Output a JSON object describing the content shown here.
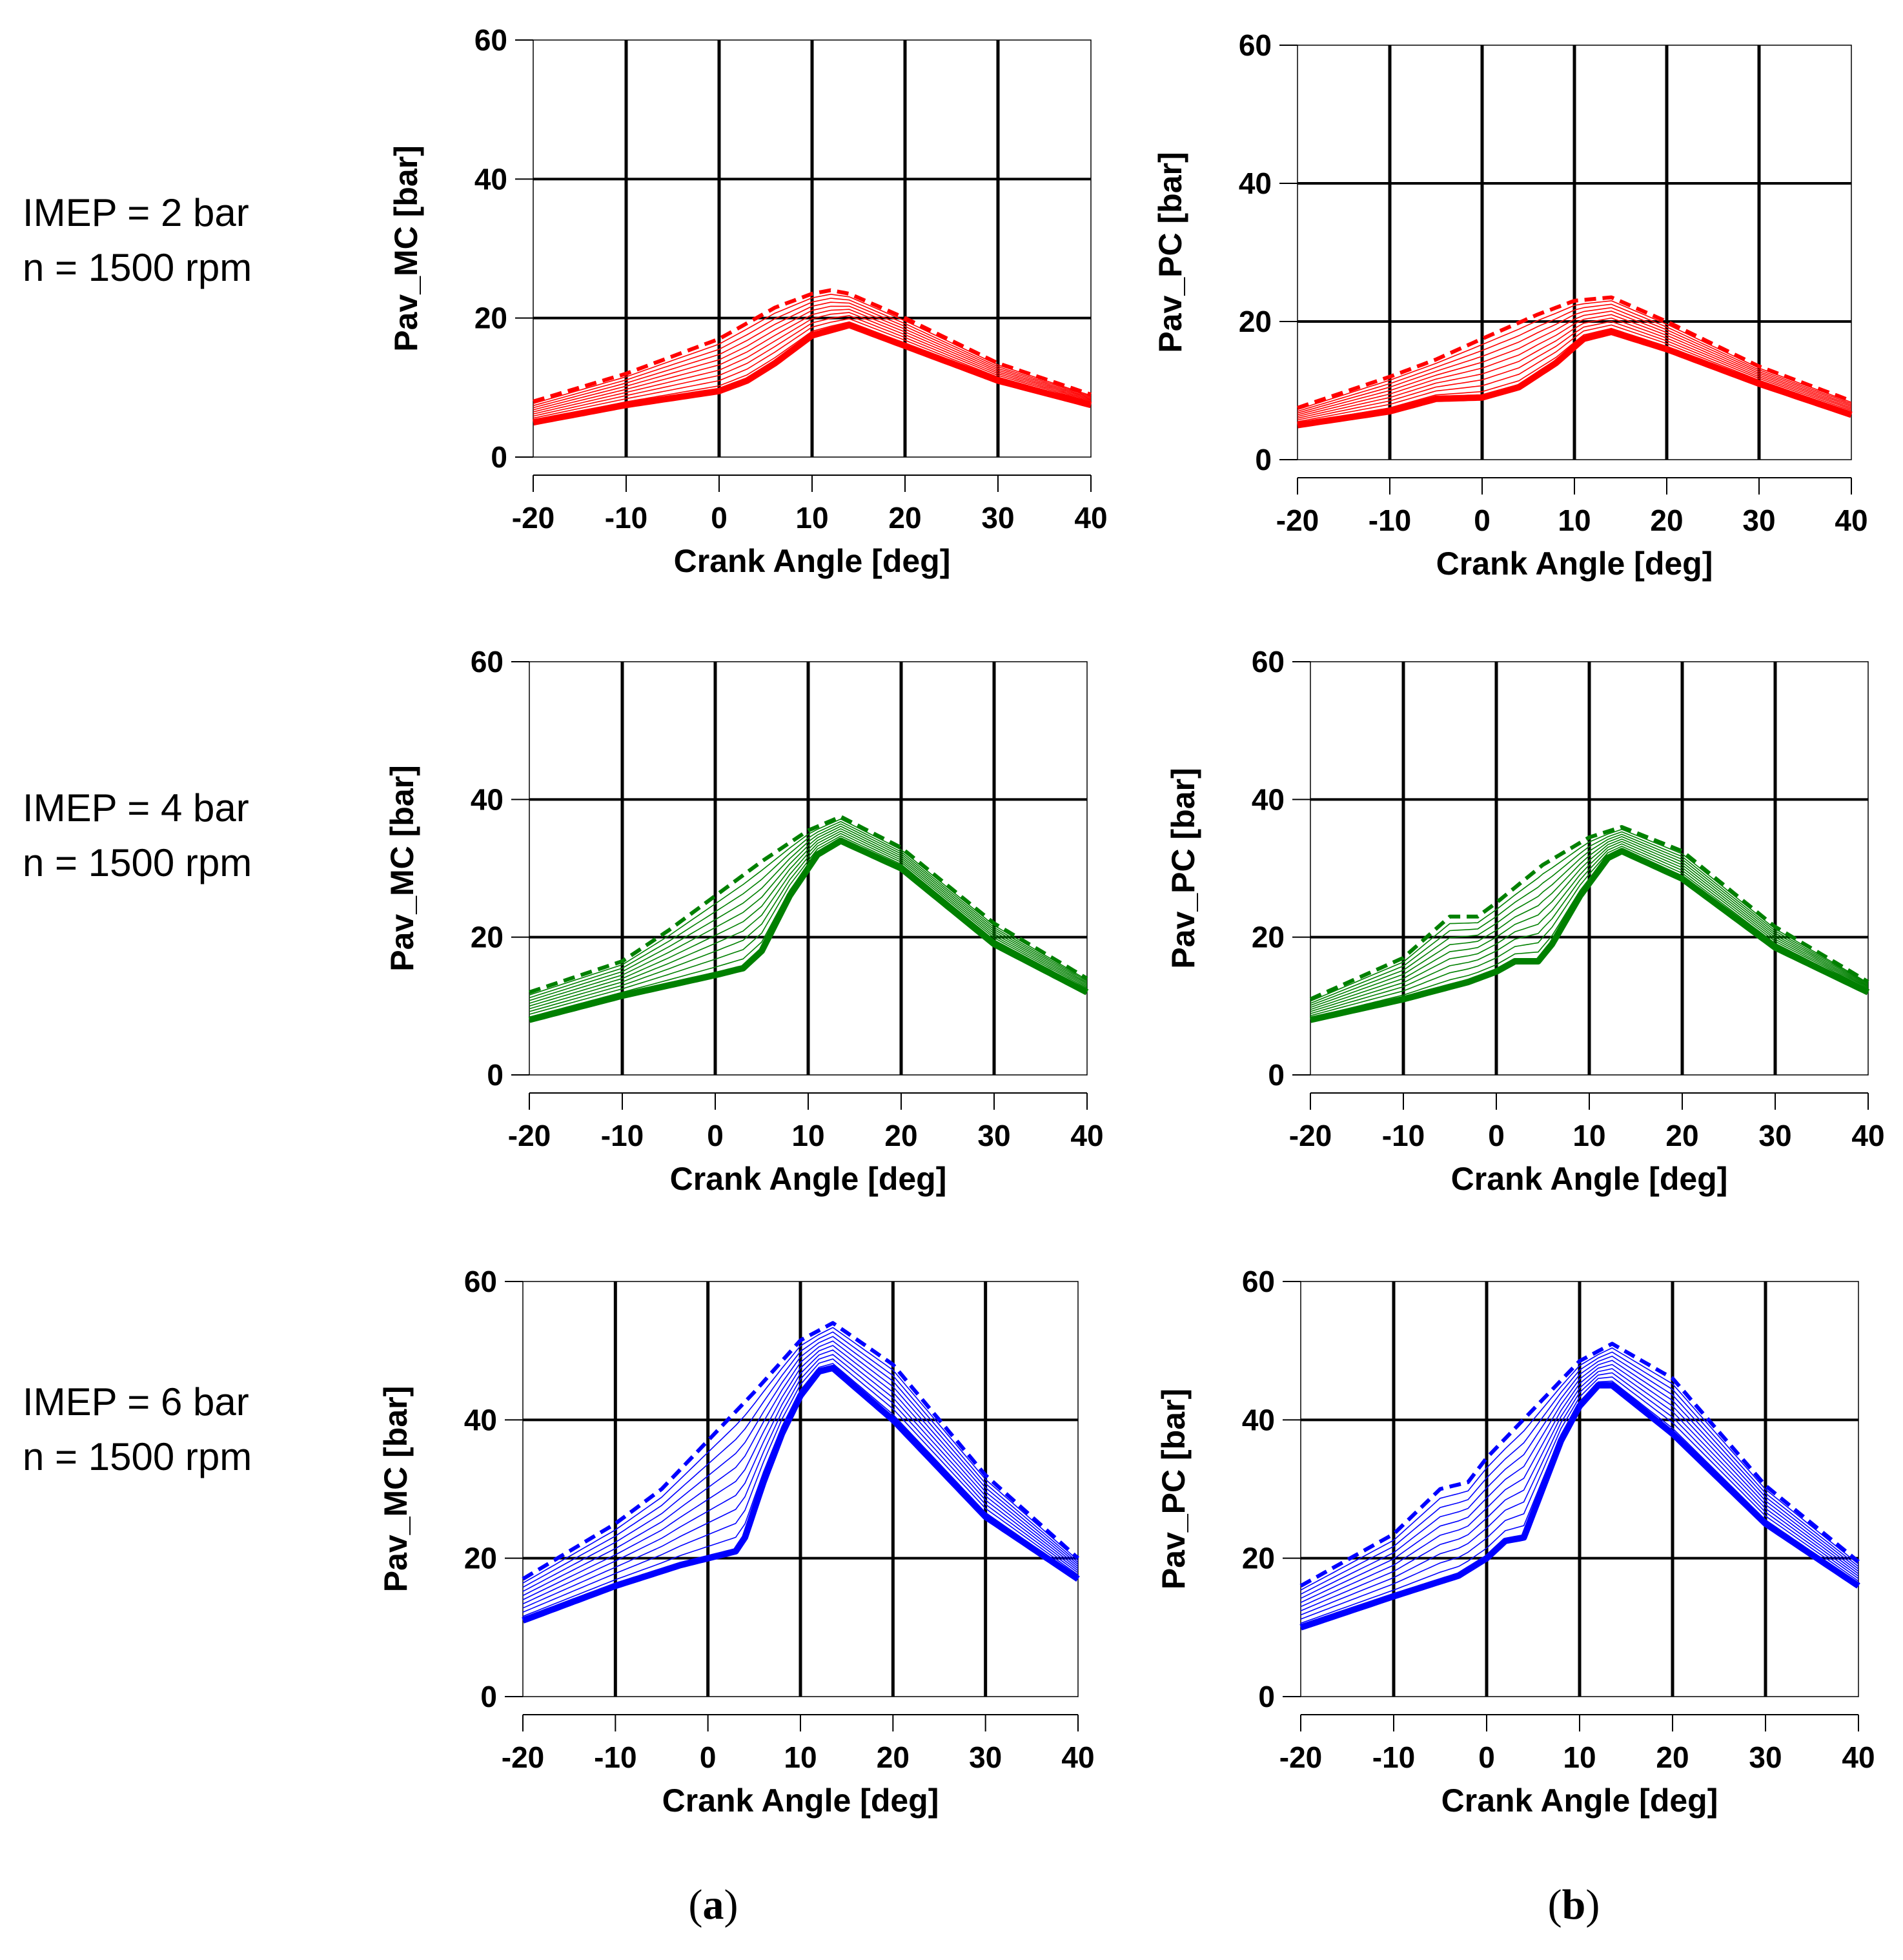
{
  "row_labels": [
    {
      "line1": "IMEP = 2 bar",
      "line2": "n = 1500 rpm"
    },
    {
      "line1": "IMEP = 4 bar",
      "line2": "n = 1500 rpm"
    },
    {
      "line1": "IMEP = 6 bar",
      "line2": "n = 1500 rpm"
    }
  ],
  "column_labels": [
    {
      "open": "(",
      "letter": "a",
      "close": ")"
    },
    {
      "open": "(",
      "letter": "b",
      "close": ")"
    }
  ],
  "colors": {
    "imep2": "#ff0000",
    "imep4": "#008000",
    "imep6": "#0000ff",
    "grid": "#000000"
  },
  "chart_data": [
    {
      "type": "line",
      "id": "a1",
      "row": 0,
      "col": 0,
      "color": "#ff0000",
      "xlabel": "Crank Angle [deg]",
      "ylabel": "Pav_MC [bar]",
      "xlim": [
        -20,
        40
      ],
      "ylim": [
        0,
        60
      ],
      "xticks": [
        -20,
        -10,
        0,
        10,
        20,
        30,
        40
      ],
      "yticks": [
        0,
        20,
        40,
        60
      ],
      "grid": true,
      "series_count": 11,
      "lower": {
        "x": [
          -20,
          -10,
          0,
          3,
          6,
          10,
          14,
          20,
          30,
          40
        ],
        "y": [
          5,
          7.5,
          9.5,
          11,
          13.5,
          17.5,
          19,
          16,
          11,
          7.5
        ]
      },
      "upper": {
        "x": [
          -20,
          -10,
          0,
          6,
          10,
          12,
          14,
          20,
          30,
          40
        ],
        "y": [
          8,
          12,
          17,
          21.5,
          23.5,
          24,
          23.5,
          20,
          13.5,
          9
        ]
      }
    },
    {
      "type": "line",
      "id": "b1",
      "row": 0,
      "col": 1,
      "color": "#ff0000",
      "xlabel": "Crank Angle [deg]",
      "ylabel": "Pav_PC [bar]",
      "xlim": [
        -20,
        40
      ],
      "ylim": [
        0,
        60
      ],
      "xticks": [
        -20,
        -10,
        0,
        10,
        20,
        30,
        40
      ],
      "yticks": [
        0,
        20,
        40,
        60
      ],
      "grid": true,
      "series_count": 11,
      "lower": {
        "x": [
          -20,
          -10,
          -5,
          0,
          4,
          8,
          11,
          14,
          20,
          30,
          40
        ],
        "y": [
          5,
          7,
          8.8,
          9,
          10.5,
          14,
          17.5,
          18.5,
          16,
          11,
          6.5
        ]
      },
      "upper": {
        "x": [
          -20,
          -10,
          -5,
          0,
          6,
          10,
          14,
          20,
          30,
          40
        ],
        "y": [
          7.5,
          12,
          14.5,
          17.5,
          21,
          23,
          23.5,
          20,
          13.5,
          8.5
        ]
      }
    },
    {
      "type": "line",
      "id": "a2",
      "row": 1,
      "col": 0,
      "color": "#008000",
      "xlabel": "Crank Angle [deg]",
      "ylabel": "Pav_MC [bar]",
      "xlim": [
        -20,
        40
      ],
      "ylim": [
        0,
        60
      ],
      "xticks": [
        -20,
        -10,
        0,
        10,
        20,
        30,
        40
      ],
      "yticks": [
        0,
        20,
        40,
        60
      ],
      "grid": true,
      "series_count": 11,
      "lower": {
        "x": [
          -20,
          -10,
          0,
          3,
          5,
          8,
          11,
          13.5,
          20,
          30,
          40
        ],
        "y": [
          8,
          11.5,
          14.5,
          15.5,
          18,
          26,
          32,
          34,
          30,
          19,
          12
        ]
      },
      "upper": {
        "x": [
          -20,
          -10,
          -5,
          0,
          5,
          10,
          13.5,
          20,
          30,
          40
        ],
        "y": [
          12,
          16.5,
          21,
          26,
          31,
          35.5,
          37.5,
          33,
          22,
          14
        ]
      }
    },
    {
      "type": "line",
      "id": "b2",
      "row": 1,
      "col": 1,
      "color": "#008000",
      "xlabel": "Crank Angle [deg]",
      "ylabel": "Pav_PC [bar]",
      "xlim": [
        -20,
        40
      ],
      "ylim": [
        0,
        60
      ],
      "xticks": [
        -20,
        -10,
        0,
        10,
        20,
        30,
        40
      ],
      "yticks": [
        0,
        20,
        40,
        60
      ],
      "grid": true,
      "series_count": 11,
      "lower": {
        "x": [
          -20,
          -10,
          -3,
          0,
          2,
          4.5,
          6,
          9,
          12,
          13.5,
          20,
          30,
          40
        ],
        "y": [
          8,
          11,
          13.5,
          15,
          16.5,
          16.5,
          19,
          26,
          31.5,
          32.5,
          28.5,
          18.5,
          12
        ]
      },
      "upper": {
        "x": [
          -20,
          -10,
          -5,
          -2,
          0,
          5,
          10,
          13.5,
          20,
          30,
          40
        ],
        "y": [
          11,
          17,
          23,
          23,
          25,
          30.5,
          34.5,
          36,
          32.5,
          21.5,
          13.5
        ]
      }
    },
    {
      "type": "line",
      "id": "a3",
      "row": 2,
      "col": 0,
      "color": "#0000ff",
      "xlabel": "Crank Angle [deg]",
      "ylabel": "Pav_MC [bar]",
      "xlim": [
        -20,
        40
      ],
      "ylim": [
        0,
        60
      ],
      "xticks": [
        -20,
        -10,
        0,
        10,
        20,
        30,
        40
      ],
      "yticks": [
        0,
        20,
        40,
        60
      ],
      "grid": true,
      "series_count": 11,
      "lower": {
        "x": [
          -20,
          -10,
          -3,
          0,
          3,
          4,
          6,
          8,
          10,
          12,
          13.5,
          20,
          30,
          40
        ],
        "y": [
          11,
          16,
          19,
          20,
          21,
          23,
          31,
          38,
          43.5,
          47,
          47.5,
          40,
          26,
          17
        ]
      },
      "upper": {
        "x": [
          -20,
          -10,
          -5,
          0,
          5,
          10,
          13.5,
          20,
          30,
          40
        ],
        "y": [
          17,
          25,
          30,
          37,
          44,
          51.5,
          54,
          48,
          32,
          20
        ]
      }
    },
    {
      "type": "line",
      "id": "b3",
      "row": 2,
      "col": 1,
      "color": "#0000ff",
      "xlabel": "Crank Angle [deg]",
      "ylabel": "Pav_PC [bar]",
      "xlim": [
        -20,
        40
      ],
      "ylim": [
        0,
        60
      ],
      "xticks": [
        -20,
        -10,
        0,
        10,
        20,
        30,
        40
      ],
      "yticks": [
        0,
        20,
        40,
        60
      ],
      "grid": true,
      "series_count": 11,
      "lower": {
        "x": [
          -20,
          -10,
          -3,
          0,
          2,
          4,
          6,
          8,
          10,
          12,
          13.5,
          20,
          30,
          40
        ],
        "y": [
          10,
          14.5,
          17.5,
          20,
          22.5,
          23,
          30,
          37,
          42,
          45,
          45,
          38,
          25,
          16
        ]
      },
      "upper": {
        "x": [
          -20,
          -10,
          -5,
          -2,
          0,
          5,
          10,
          13.5,
          20,
          30,
          40
        ],
        "y": [
          16,
          23.5,
          30,
          31,
          34.5,
          41.5,
          48.5,
          51,
          46,
          30.5,
          19.5
        ]
      }
    }
  ]
}
